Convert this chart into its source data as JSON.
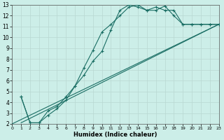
{
  "xlabel": "Humidex (Indice chaleur)",
  "background_color": "#cceee8",
  "grid_color": "#b8d8d2",
  "line_color": "#1a6e64",
  "xlim": [
    0,
    23
  ],
  "ylim": [
    2,
    13
  ],
  "xticks": [
    0,
    1,
    2,
    3,
    4,
    5,
    6,
    7,
    8,
    9,
    10,
    11,
    12,
    13,
    14,
    15,
    16,
    17,
    18,
    19,
    20,
    21,
    22,
    23
  ],
  "yticks": [
    2,
    3,
    4,
    5,
    6,
    7,
    8,
    9,
    10,
    11,
    12,
    13
  ],
  "curve1_x": [
    1,
    2,
    3,
    4,
    5,
    6,
    7,
    8,
    9,
    10,
    11,
    12,
    13,
    14,
    15,
    16,
    17,
    18,
    19,
    20,
    21,
    22,
    23
  ],
  "curve1_y": [
    4.5,
    2.1,
    2.1,
    3.2,
    3.6,
    4.5,
    5.5,
    6.5,
    7.8,
    8.7,
    10.7,
    12.5,
    13.0,
    12.8,
    12.5,
    12.5,
    12.9,
    12.0,
    11.2,
    11.2,
    11.2,
    11.2,
    11.2
  ],
  "curve2_x": [
    1,
    2,
    3,
    4,
    5,
    6,
    7,
    8,
    9,
    10,
    11,
    12,
    13,
    14,
    15,
    16,
    17,
    18,
    19,
    20,
    21,
    22,
    23
  ],
  "curve2_y": [
    4.5,
    2.1,
    2.1,
    2.8,
    3.4,
    4.2,
    5.5,
    7.2,
    8.8,
    10.5,
    11.2,
    12.0,
    12.8,
    13.0,
    12.5,
    12.8,
    12.5,
    12.5,
    11.2,
    11.2,
    11.2,
    11.2,
    11.2
  ],
  "line1_x": [
    0,
    23
  ],
  "line1_y": [
    2.0,
    11.2
  ],
  "line2_x": [
    1,
    23
  ],
  "line2_y": [
    2.1,
    11.2
  ]
}
